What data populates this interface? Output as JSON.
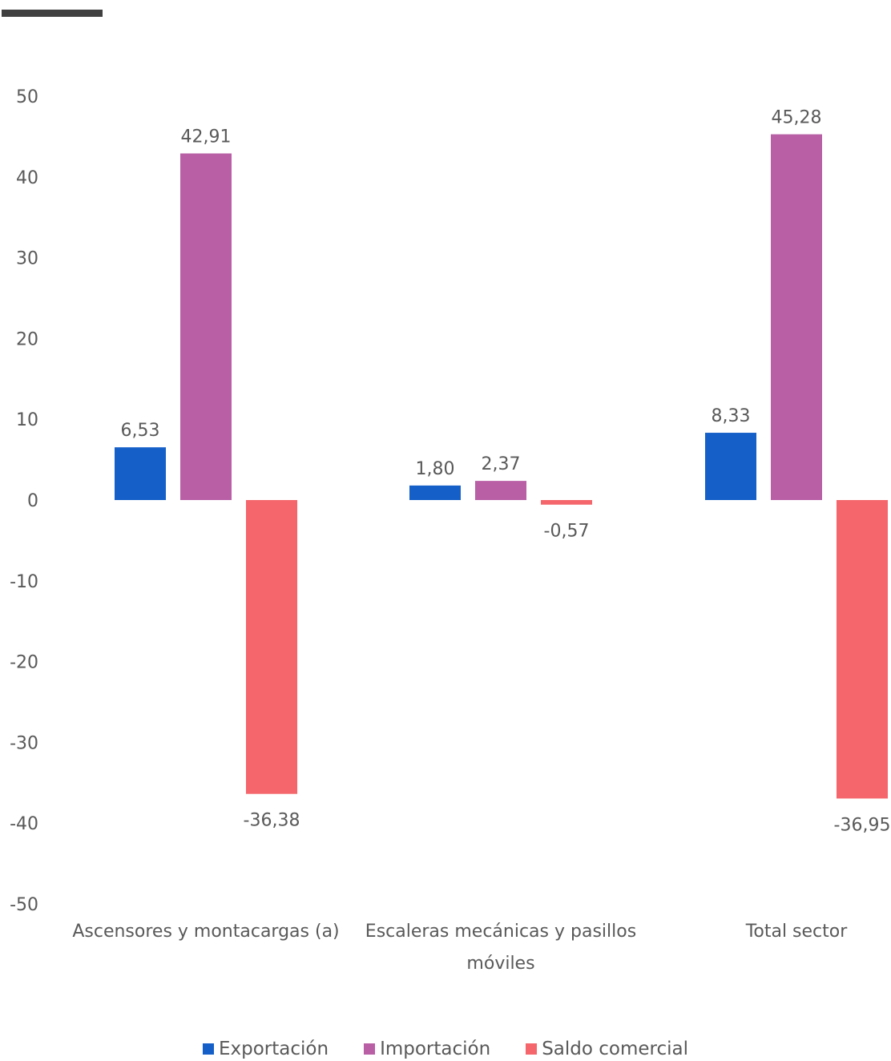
{
  "chart_data": {
    "type": "bar",
    "categories": [
      [
        "Ascensores y montacargas (a)"
      ],
      [
        "Escaleras mecánicas y pasillos",
        "móviles"
      ],
      [
        "Total sector"
      ]
    ],
    "series": [
      {
        "name": "Exportación",
        "color": "#1560c8",
        "values": [
          6.53,
          1.8,
          8.33
        ],
        "labels": [
          "6,53",
          "1,80",
          "8,33"
        ]
      },
      {
        "name": "Importación",
        "color": "#b85fa6",
        "values": [
          42.91,
          2.37,
          45.28
        ],
        "labels": [
          "42,91",
          "2,37",
          "45,28"
        ]
      },
      {
        "name": "Saldo comercial",
        "color": "#f4666b",
        "values": [
          -36.38,
          -0.57,
          -36.95
        ],
        "labels": [
          "-36,38",
          "-0,57",
          "-36,95"
        ]
      }
    ],
    "ylim": [
      -50,
      50
    ],
    "yticks": [
      50,
      40,
      30,
      20,
      10,
      0,
      -10,
      -20,
      -30,
      -40,
      -50
    ],
    "legend_position": "bottom",
    "grid": false
  }
}
